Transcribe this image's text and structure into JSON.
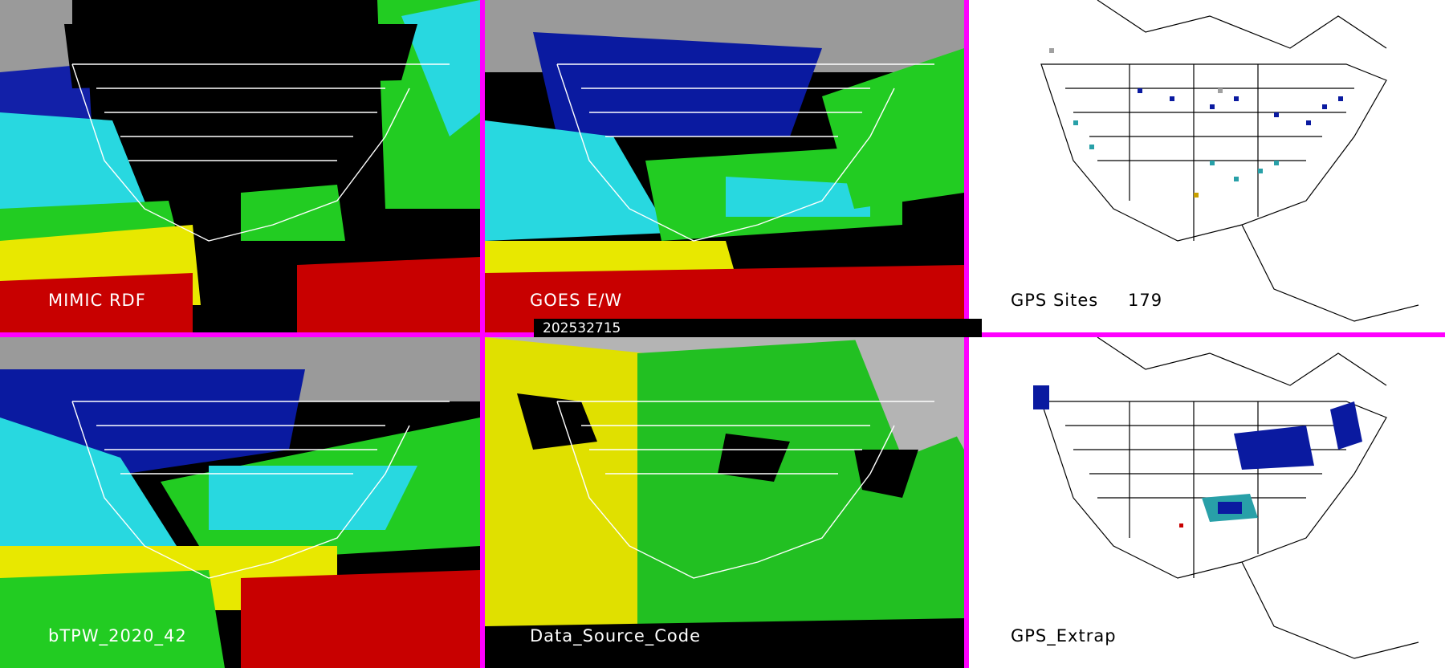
{
  "timestamp": "202532715",
  "panels": [
    {
      "id": "mimic",
      "label": "MIMIC RDF"
    },
    {
      "id": "goes",
      "label": "GOES E/W"
    },
    {
      "id": "gps-sites",
      "label": "GPS Sites",
      "count": "179"
    },
    {
      "id": "btpw",
      "label": "bTPW_2020_42"
    },
    {
      "id": "dsc",
      "label": "Data_Source_Code"
    },
    {
      "id": "gps-extrap",
      "label": "GPS_Extrap"
    }
  ],
  "colors": {
    "divider": "#ff00ff",
    "very_dry": "#b0b0b0",
    "dry": "#0a1aa0",
    "mid_blue": "#2f5fd0",
    "cyan": "#28d8e0",
    "green": "#22cc22",
    "yellow": "#e8e800",
    "red": "#c80000",
    "source_gray": "#b4b4b4",
    "source_yellow": "#e0e000",
    "source_green": "#22c022"
  }
}
